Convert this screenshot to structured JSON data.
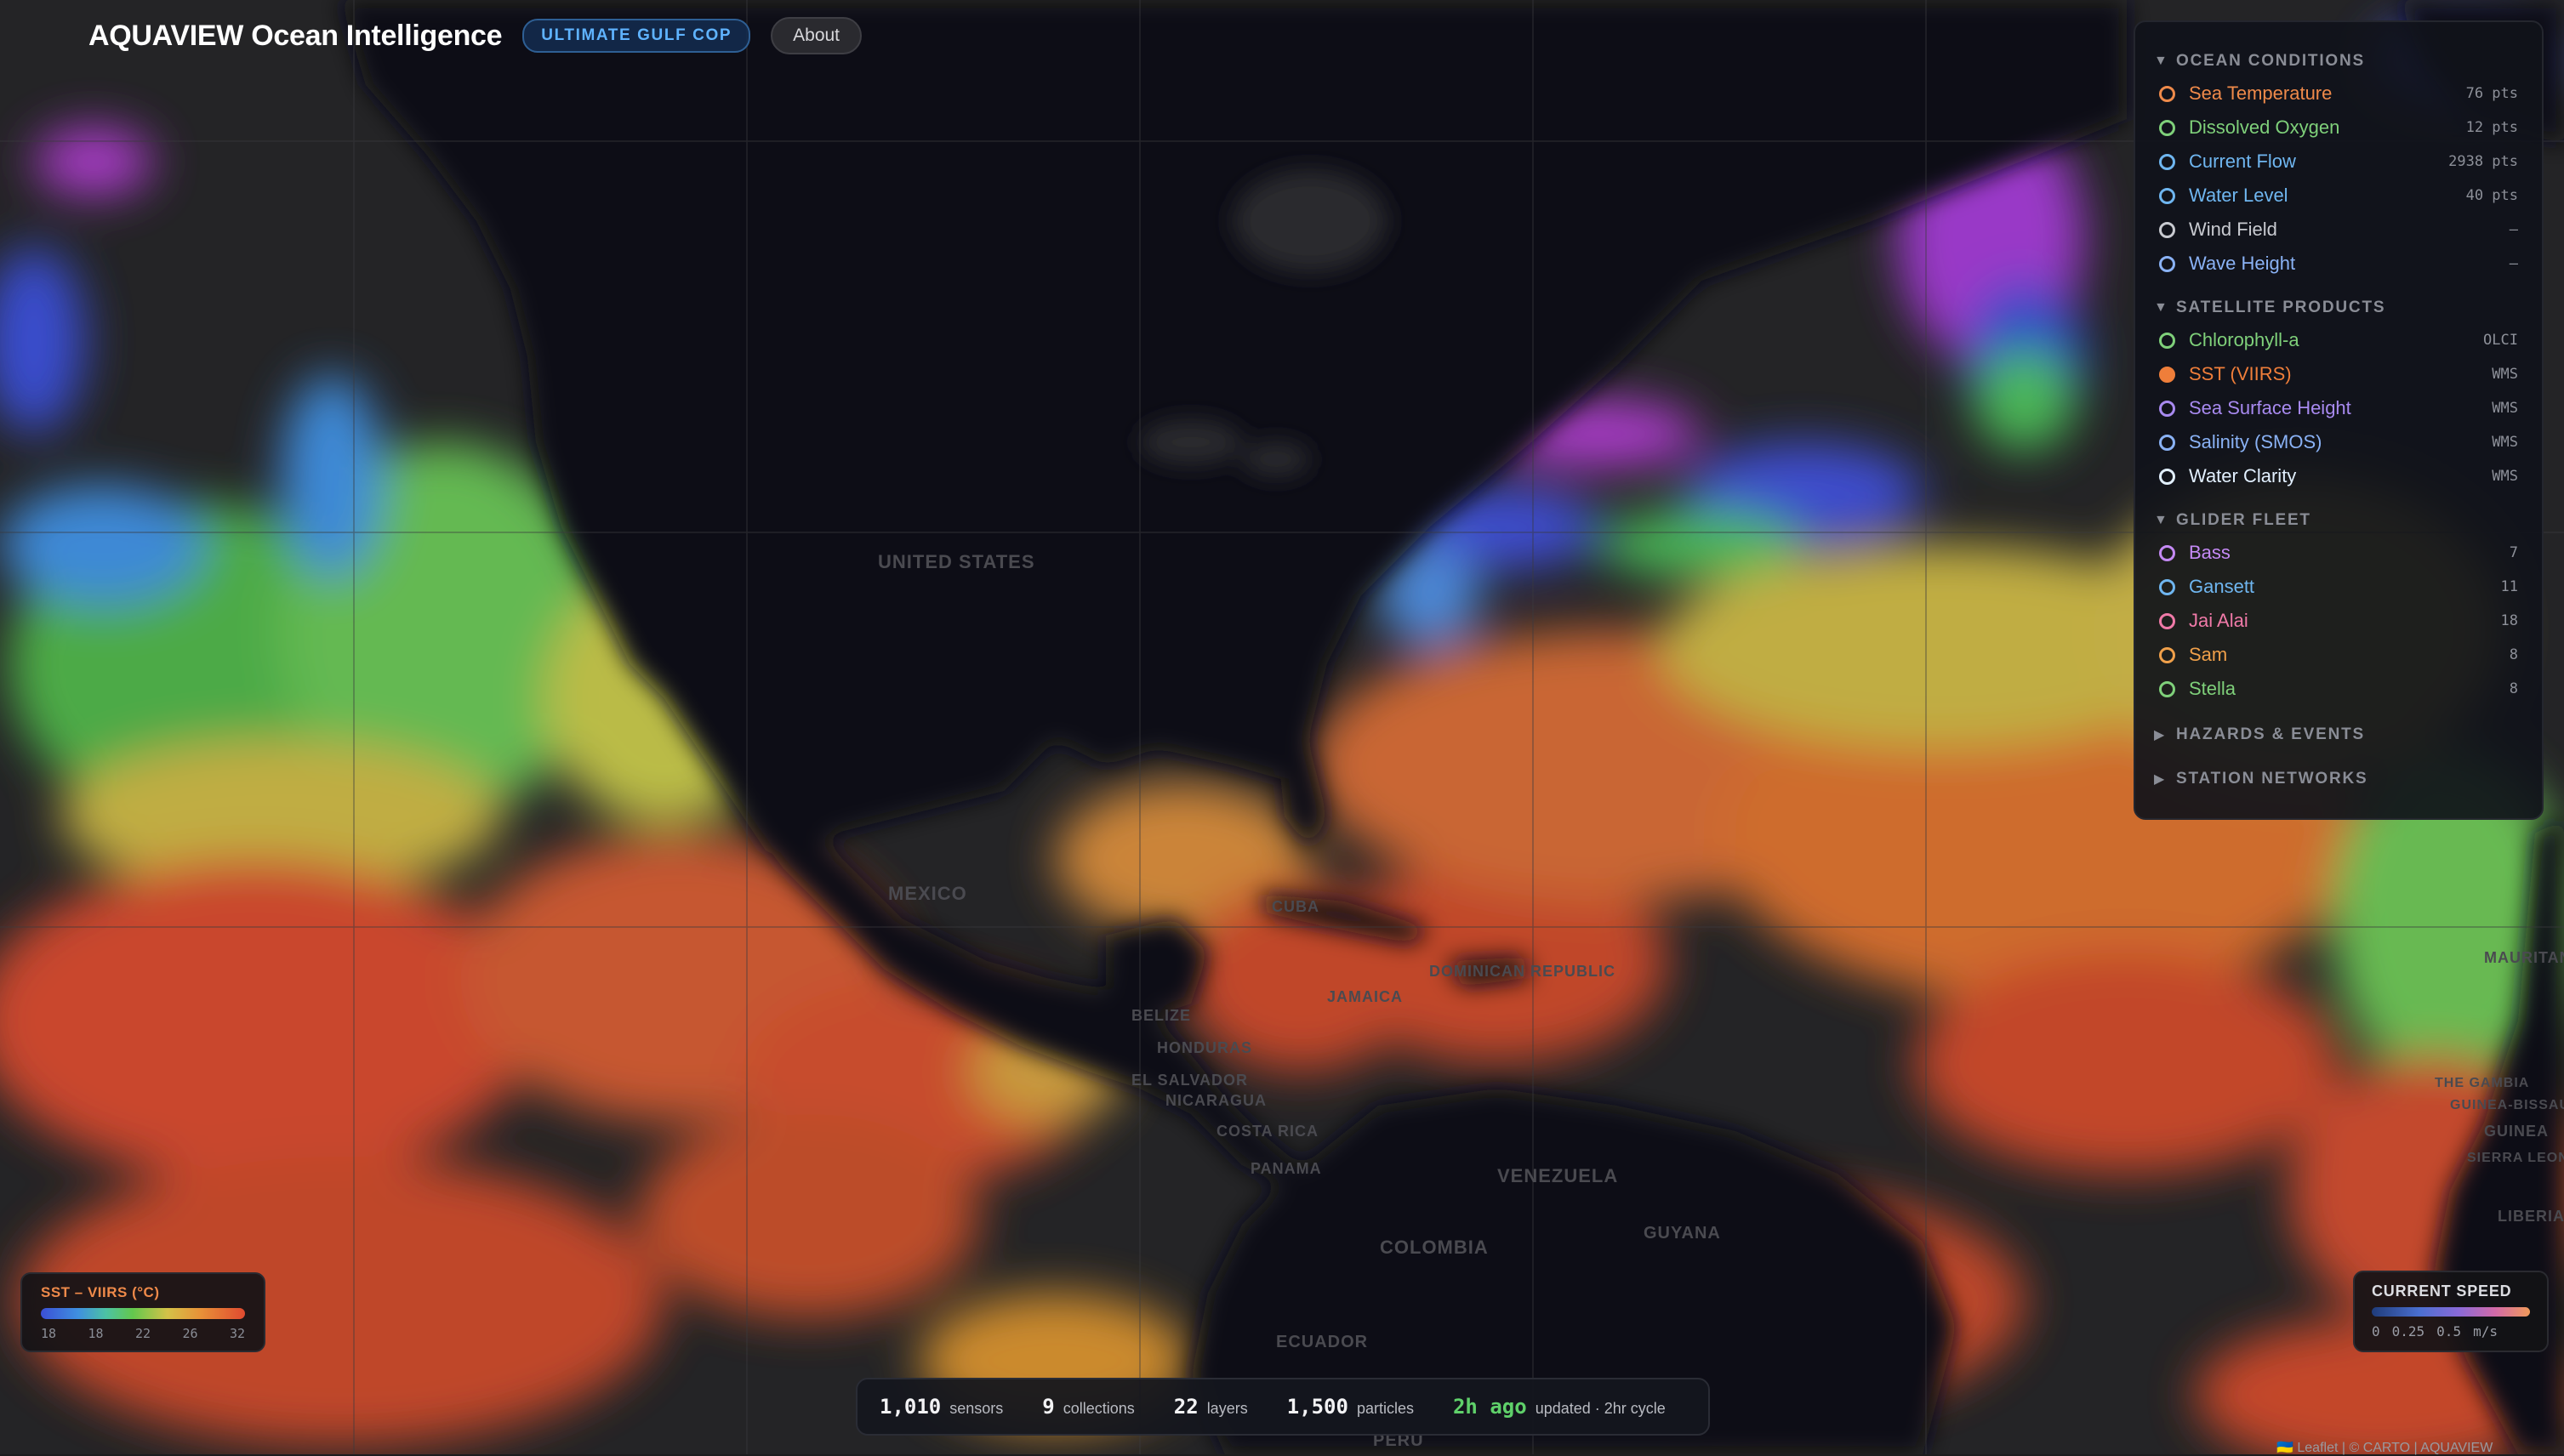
{
  "header": {
    "title": "AQUAVIEW Ocean Intelligence",
    "badge": "ULTIMATE GULF COP",
    "about": "About"
  },
  "map_labels": {
    "united_states": "UNITED STATES",
    "mexico": "MEXICO",
    "cuba": "CUBA",
    "belize": "BELIZE",
    "honduras": "HONDURAS",
    "el_salvador": "EL SALVADOR",
    "nicaragua": "NICARAGUA",
    "costa_rica": "COSTA RICA",
    "panama": "PANAMA",
    "jamaica": "JAMAICA",
    "dominican_republic": "DOMINICAN REPUBLIC",
    "venezuela": "VENEZUELA",
    "guyana": "GUYANA",
    "colombia": "COLOMBIA",
    "ecuador": "ECUADOR",
    "peru": "PERU",
    "mauritania": "MAURITANIA",
    "gambia": "THE GAMBIA",
    "guinea_bissau": "GUINEA-BISSAU",
    "guinea": "GUINEA",
    "sierra_leone": "SIERRA LEONE",
    "liberia": "LIBERIA"
  },
  "panel": {
    "sections": [
      {
        "title": "OCEAN CONDITIONS",
        "expanded": true,
        "items": [
          {
            "label": "Sea Temperature",
            "meta": "76 pts",
            "color": "#ef8a4a",
            "active": false
          },
          {
            "label": "Dissolved Oxygen",
            "meta": "12 pts",
            "color": "#7fd07a",
            "active": false
          },
          {
            "label": "Current Flow",
            "meta": "2938 pts",
            "color": "#6fb6f0",
            "active": false
          },
          {
            "label": "Water Level",
            "meta": "40 pts",
            "color": "#6fb6f0",
            "active": false
          },
          {
            "label": "Wind Field",
            "meta": "—",
            "color": "#c8cad0",
            "active": false
          },
          {
            "label": "Wave Height",
            "meta": "—",
            "color": "#8ab2f5",
            "active": false
          }
        ]
      },
      {
        "title": "SATELLITE PRODUCTS",
        "expanded": true,
        "items": [
          {
            "label": "Chlorophyll-a",
            "meta": "OLCI",
            "color": "#7fd07a",
            "active": false
          },
          {
            "label": "SST (VIIRS)",
            "meta": "WMS",
            "color": "#ef7e3a",
            "active": true
          },
          {
            "label": "Sea Surface Height",
            "meta": "WMS",
            "color": "#a88af0",
            "active": false
          },
          {
            "label": "Salinity (SMOS)",
            "meta": "WMS",
            "color": "#8ab2f5",
            "active": false
          },
          {
            "label": "Water Clarity",
            "meta": "WMS",
            "color": "#e2f0ff",
            "active": false
          }
        ]
      },
      {
        "title": "GLIDER FLEET",
        "expanded": true,
        "items": [
          {
            "label": "Bass",
            "meta": "7",
            "color": "#c58af5",
            "active": false
          },
          {
            "label": "Gansett",
            "meta": "11",
            "color": "#6fb6f0",
            "active": false
          },
          {
            "label": "Jai Alai",
            "meta": "18",
            "color": "#f07aa8",
            "active": false
          },
          {
            "label": "Sam",
            "meta": "8",
            "color": "#f0a04a",
            "active": false
          },
          {
            "label": "Stella",
            "meta": "8",
            "color": "#7fd07a",
            "active": false
          }
        ]
      },
      {
        "title": "HAZARDS & EVENTS",
        "expanded": false,
        "items": []
      },
      {
        "title": "STATION NETWORKS",
        "expanded": false,
        "items": []
      }
    ]
  },
  "sst_legend": {
    "title": "SST – VIIRS (°C)",
    "ticks": [
      "18",
      "18",
      "22",
      "26",
      "32"
    ]
  },
  "current_legend": {
    "title": "CURRENT SPEED",
    "ticks": [
      "0",
      "0.25",
      "0.5",
      "m/s"
    ]
  },
  "stats": {
    "sensors_value": "1,010",
    "sensors_label": "sensors",
    "collections_value": "9",
    "collections_label": "collections",
    "layers_value": "22",
    "layers_label": "layers",
    "particles_value": "1,500",
    "particles_label": "particles",
    "updated_value": "2h ago",
    "updated_label": "updated · 2hr cycle"
  },
  "attribution": "🇺🇦 Leaflet | © CARTO | AQUAVIEW"
}
